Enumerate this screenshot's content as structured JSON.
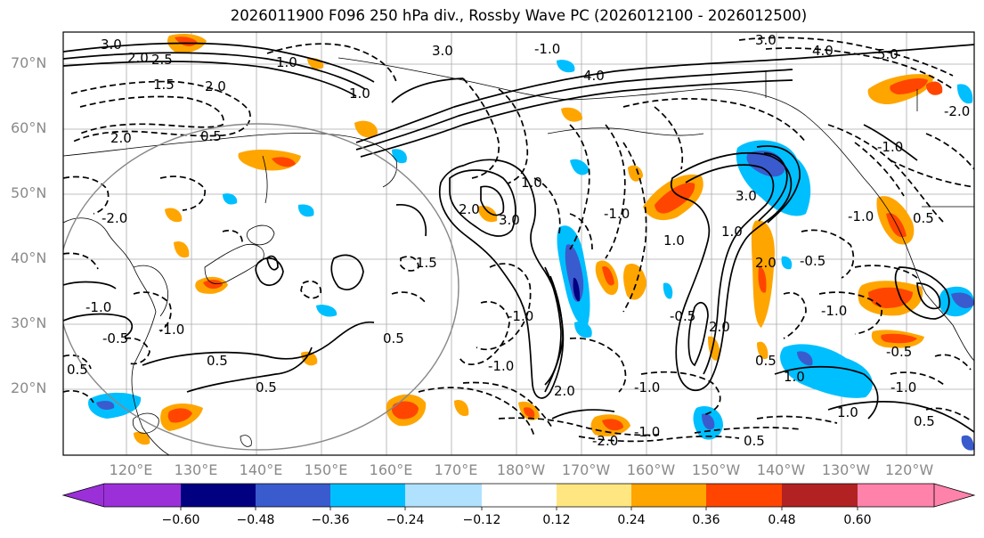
{
  "title": "2026011900 F096 250 hPa div., Rossby Wave PC (2026012100 - 2026012500)",
  "lat_labels": [
    "70°N",
    "60°N",
    "50°N",
    "40°N",
    "30°N",
    "20°N"
  ],
  "lon_labels": [
    "120°E",
    "130°E",
    "140°E",
    "150°E",
    "160°E",
    "170°E",
    "180°W",
    "170°W",
    "160°W",
    "150°W",
    "140°W",
    "130°W",
    "120°W"
  ],
  "colorbar": {
    "ticks": [
      "−0.60",
      "−0.48",
      "−0.36",
      "−0.24",
      "−0.12",
      "0.12",
      "0.24",
      "0.36",
      "0.48",
      "0.60"
    ],
    "colors": [
      "#9b30d9",
      "#000080",
      "#3a5bcd",
      "#00bfff",
      "#b0e2ff",
      "#ffffff",
      "#ffe680",
      "#ffa500",
      "#ff4500",
      "#b22222",
      "#ff82ab"
    ]
  },
  "contour_labels": {
    "solid": [
      "3.0",
      "2.0",
      "1.5",
      "1.0",
      "0.5",
      "4.0",
      "5.0"
    ],
    "dashed": [
      "-1.0",
      "-0.5",
      "-1.5",
      "-2.0",
      "-2.5",
      "-3.0",
      "-4.0",
      "-5.0"
    ]
  },
  "map_labels": [
    {
      "id": "l1",
      "text": "3.0"
    },
    {
      "id": "l2",
      "text": "2.0"
    },
    {
      "id": "l3",
      "text": "2.5"
    },
    {
      "id": "l4",
      "text": "1.5"
    },
    {
      "id": "l5",
      "text": "2.0"
    },
    {
      "id": "l6",
      "text": "1.0"
    },
    {
      "id": "l7",
      "text": "0.5"
    },
    {
      "id": "l8",
      "text": "3.0"
    },
    {
      "id": "l9",
      "text": "1.0"
    },
    {
      "id": "l10",
      "text": "4.0"
    },
    {
      "id": "l11",
      "text": "4.0"
    },
    {
      "id": "l12",
      "text": "5.0"
    },
    {
      "id": "l13",
      "text": "3.0"
    },
    {
      "id": "l14",
      "text": "2.0"
    },
    {
      "id": "l15",
      "text": "1.0"
    },
    {
      "id": "l16",
      "text": "2.0"
    },
    {
      "id": "l17",
      "text": "3.0"
    },
    {
      "id": "l18",
      "text": "1.5"
    },
    {
      "id": "l19",
      "text": "-1.0"
    },
    {
      "id": "l20",
      "text": "-1.0"
    },
    {
      "id": "l21",
      "text": "2.0"
    },
    {
      "id": "l22",
      "text": "-1.0"
    },
    {
      "id": "l23",
      "text": "3.0"
    },
    {
      "id": "l24",
      "text": "1.0"
    },
    {
      "id": "l25",
      "text": "2.0"
    },
    {
      "id": "l26",
      "text": "-0.5"
    },
    {
      "id": "l27",
      "text": "-1.0"
    },
    {
      "id": "l28",
      "text": "-0.5"
    },
    {
      "id": "l29",
      "text": "-1.0"
    },
    {
      "id": "l30",
      "text": "0.5"
    },
    {
      "id": "l31",
      "text": "-1.0"
    },
    {
      "id": "l32",
      "text": "0.5"
    },
    {
      "id": "l33",
      "text": "0.5"
    },
    {
      "id": "l34",
      "text": "-2.0"
    },
    {
      "id": "l35",
      "text": "-1.0"
    },
    {
      "id": "l36",
      "text": "-0.5"
    },
    {
      "id": "l37",
      "text": "-1.0"
    },
    {
      "id": "l38",
      "text": "-0.5"
    },
    {
      "id": "l39",
      "text": "1.0"
    },
    {
      "id": "l40",
      "text": "-1.0"
    },
    {
      "id": "l41",
      "text": "0.5"
    },
    {
      "id": "l42",
      "text": "-2.0"
    },
    {
      "id": "l43",
      "text": "-1.0"
    },
    {
      "id": "l44",
      "text": "0.5"
    },
    {
      "id": "l45",
      "text": "1.0"
    },
    {
      "id": "l46",
      "text": "0.5"
    },
    {
      "id": "l47",
      "text": "-2.0"
    },
    {
      "id": "l48",
      "text": "-1.0"
    },
    {
      "id": "l49",
      "text": "0.5"
    },
    {
      "id": "l50",
      "text": "1.0"
    },
    {
      "id": "l51",
      "text": "2.0"
    },
    {
      "id": "l52",
      "text": "0.5"
    },
    {
      "id": "l53",
      "text": "-1.0"
    }
  ]
}
